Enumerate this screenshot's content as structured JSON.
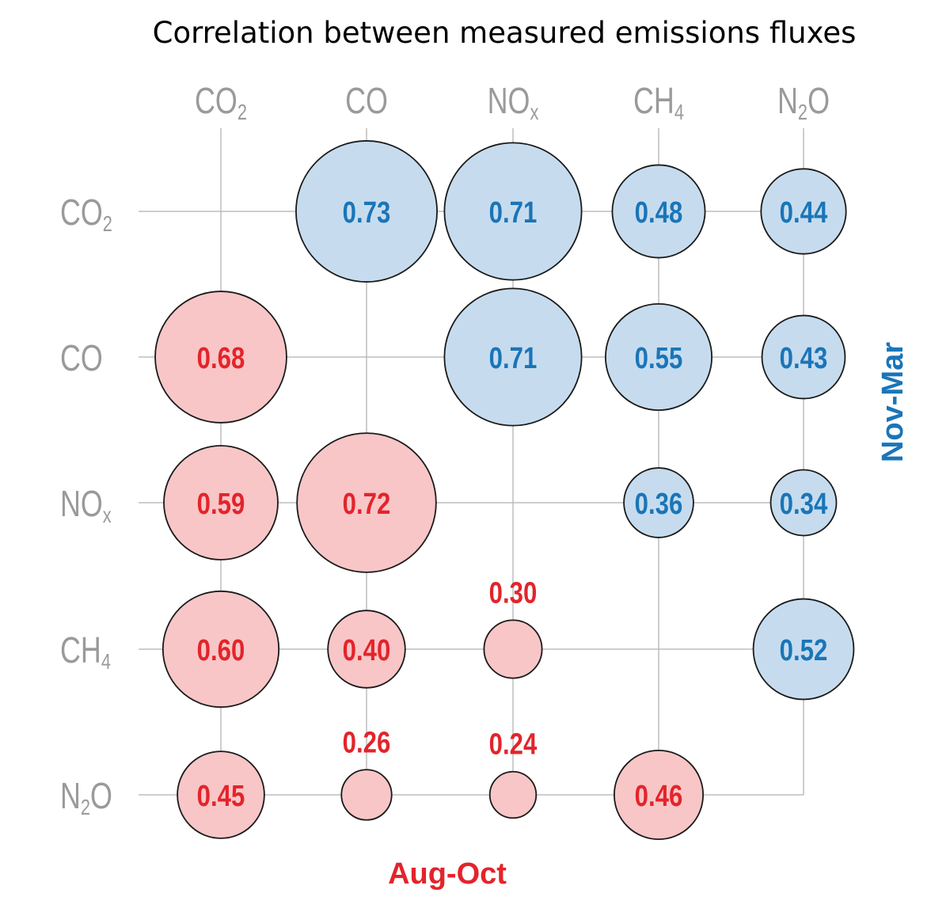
{
  "chart_data": {
    "type": "bubble-correlation-matrix",
    "title": "Correlation between measured emissions fluxes",
    "variables": [
      {
        "base": "CO",
        "sub": "2"
      },
      {
        "base": "CO",
        "sub": ""
      },
      {
        "base": "NO",
        "sub": "x"
      },
      {
        "base": "CH",
        "sub": "4"
      },
      {
        "base": "N",
        "sub": "2",
        "suffix": "O"
      }
    ],
    "variable_names": [
      "CO2",
      "CO",
      "NOx",
      "CH4",
      "N2O"
    ],
    "upper_triangle": {
      "label": "Nov-Mar",
      "color_fill": "#c6dcee",
      "color_text": "#1a75b8",
      "label_position": "right",
      "cells": [
        {
          "row": "CO2",
          "col": "CO",
          "value": 0.73
        },
        {
          "row": "CO2",
          "col": "NOx",
          "value": 0.71
        },
        {
          "row": "CO2",
          "col": "CH4",
          "value": 0.48
        },
        {
          "row": "CO2",
          "col": "N2O",
          "value": 0.44
        },
        {
          "row": "CO",
          "col": "NOx",
          "value": 0.71
        },
        {
          "row": "CO",
          "col": "CH4",
          "value": 0.55
        },
        {
          "row": "CO",
          "col": "N2O",
          "value": 0.43
        },
        {
          "row": "NOx",
          "col": "CH4",
          "value": 0.36
        },
        {
          "row": "NOx",
          "col": "N2O",
          "value": 0.34
        },
        {
          "row": "CH4",
          "col": "N2O",
          "value": 0.52
        }
      ]
    },
    "lower_triangle": {
      "label": "Aug-Oct",
      "color_fill": "#f8c6c7",
      "color_text": "#e3242b",
      "label_position": "bottom",
      "cells": [
        {
          "row": "CO",
          "col": "CO2",
          "value": 0.68
        },
        {
          "row": "NOx",
          "col": "CO2",
          "value": 0.59
        },
        {
          "row": "NOx",
          "col": "CO",
          "value": 0.72
        },
        {
          "row": "CH4",
          "col": "CO2",
          "value": 0.6
        },
        {
          "row": "CH4",
          "col": "CO",
          "value": 0.4
        },
        {
          "row": "CH4",
          "col": "NOx",
          "value": 0.3
        },
        {
          "row": "N2O",
          "col": "CO2",
          "value": 0.45
        },
        {
          "row": "N2O",
          "col": "CO",
          "value": 0.26
        },
        {
          "row": "N2O",
          "col": "NOx",
          "value": 0.24
        },
        {
          "row": "N2O",
          "col": "CH4",
          "value": 0.46
        }
      ]
    },
    "colors": {
      "axis_text": "#9a9a9a",
      "grid": "#bdbdbd",
      "circle_stroke": "#1a1a1a"
    }
  }
}
